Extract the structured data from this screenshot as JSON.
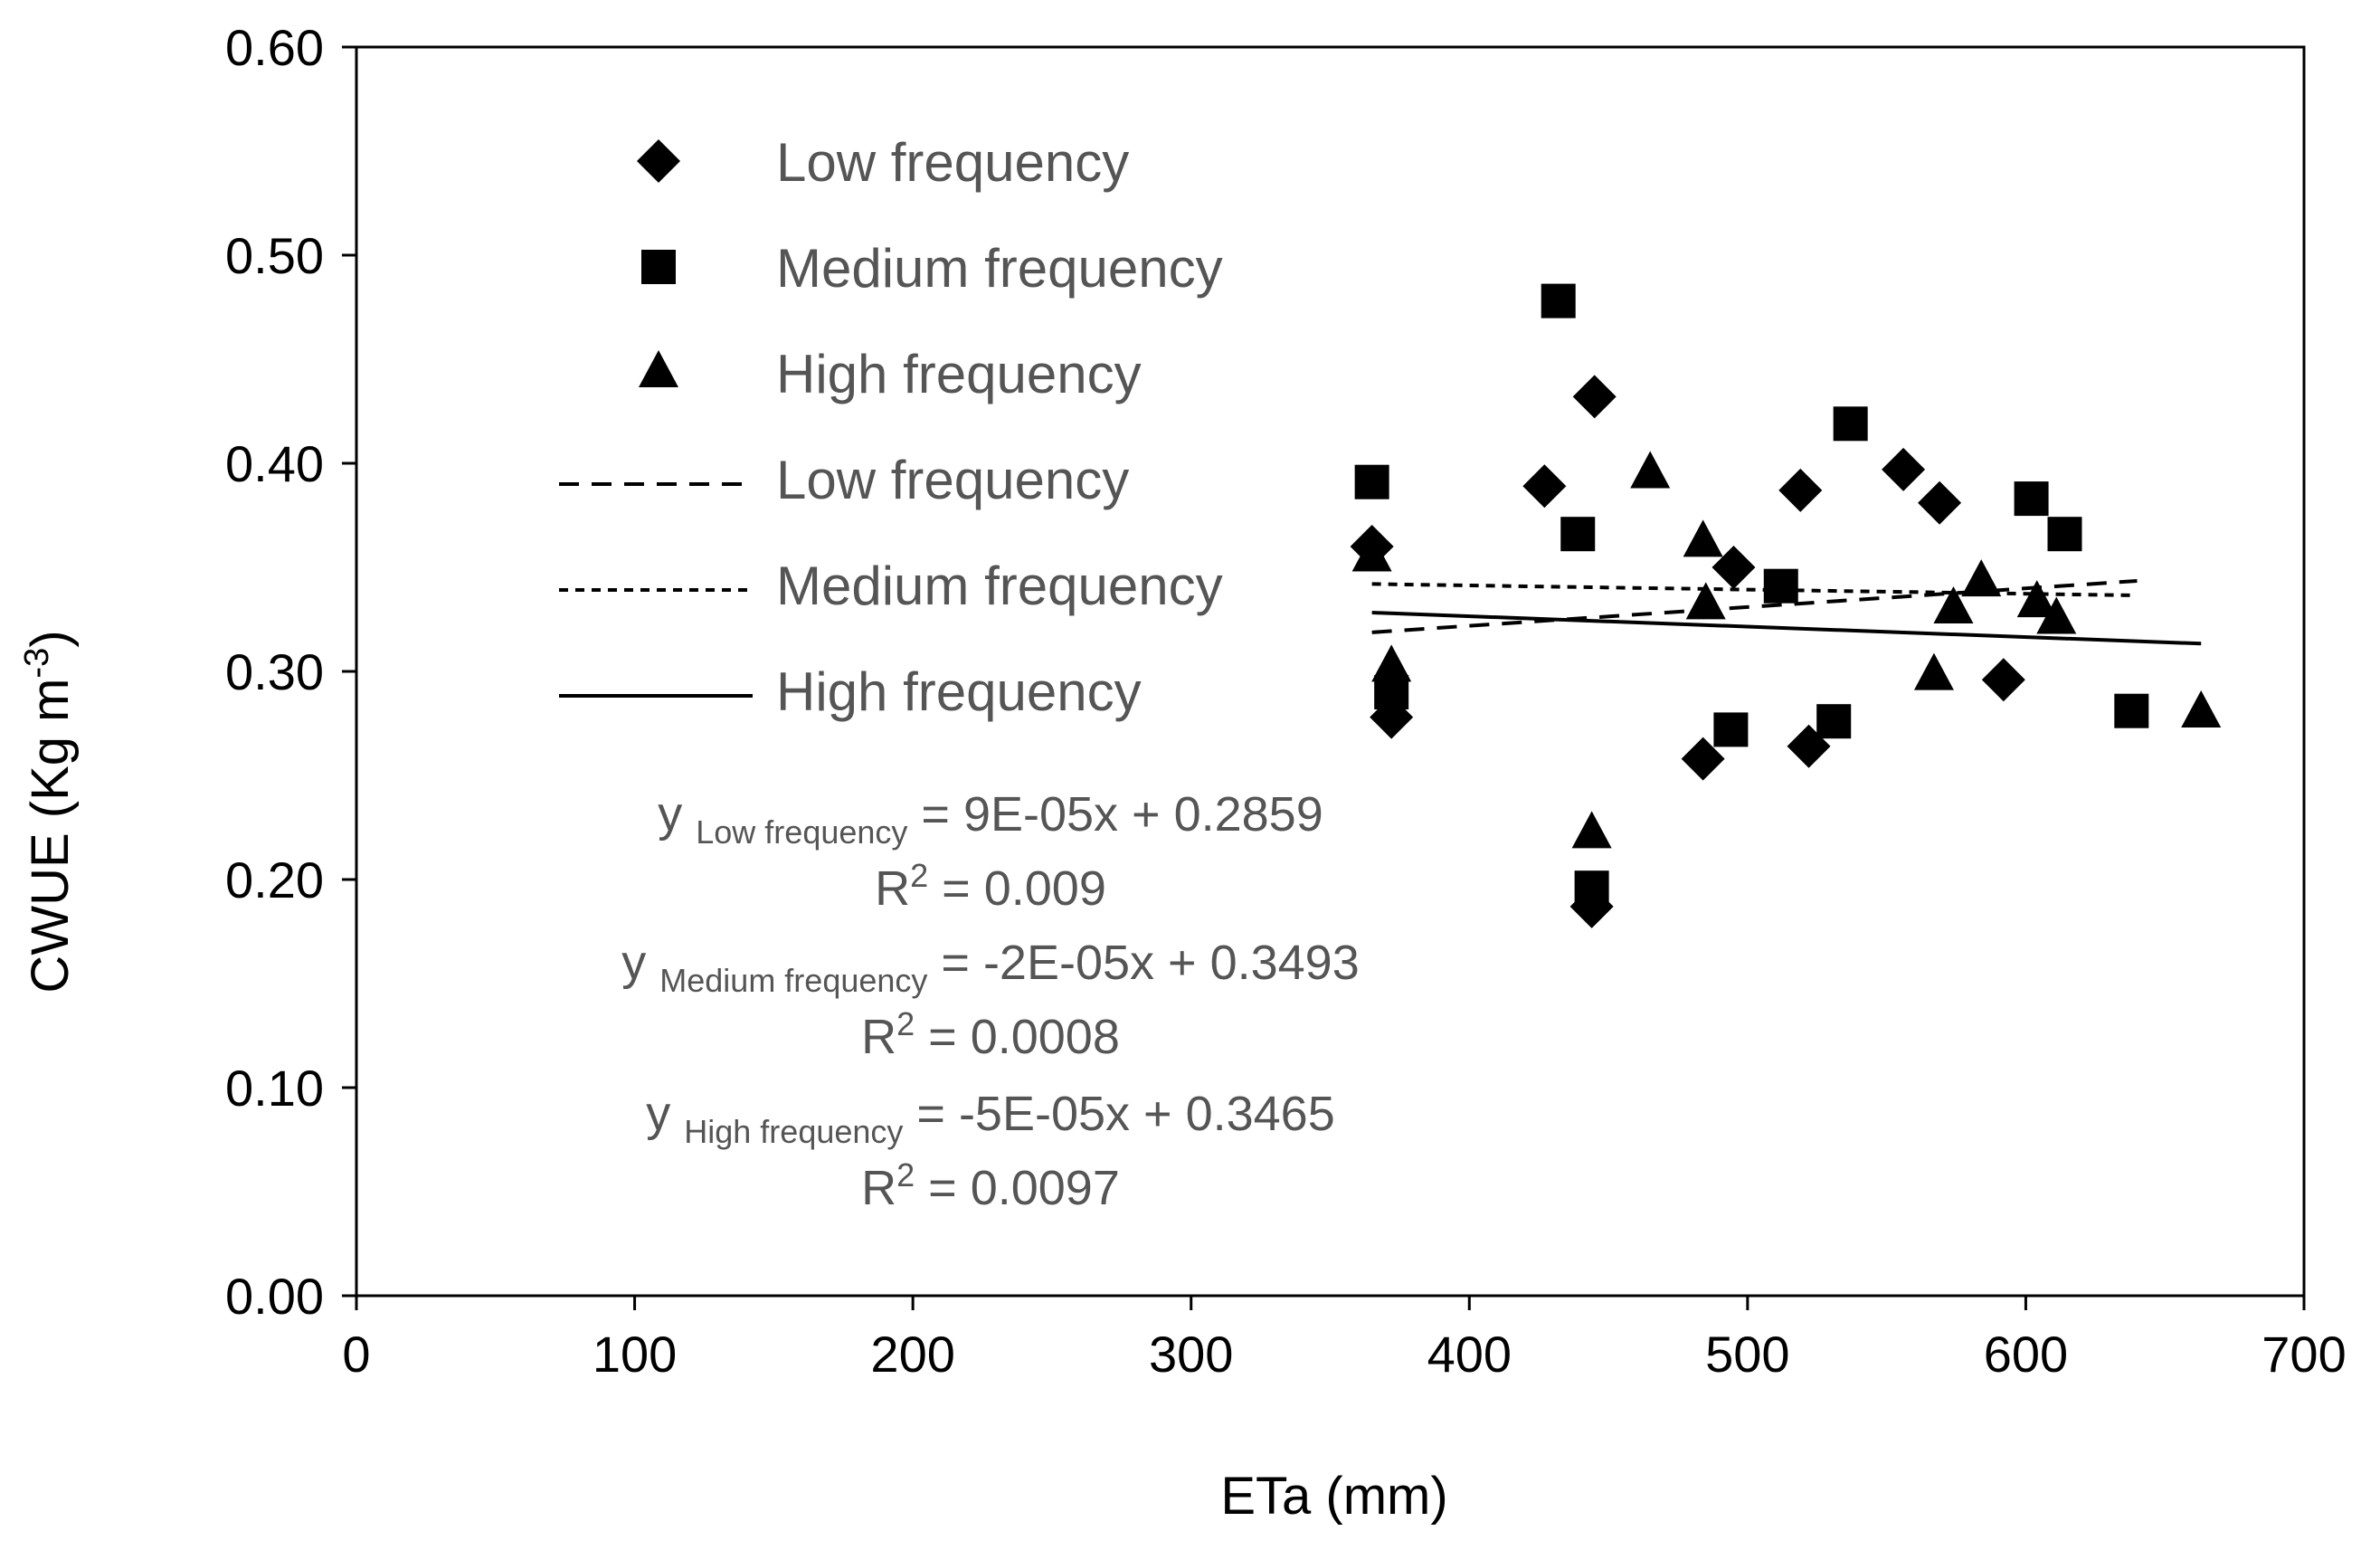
{
  "chart_data": {
    "type": "scatter",
    "title": "",
    "xlabel": "ETa (mm)",
    "ylabel_main": "CWUE (Kg m",
    "ylabel_sup": "-3",
    "ylabel_close": ")",
    "xlim": [
      0,
      700
    ],
    "ylim": [
      0,
      0.6
    ],
    "x_ticks": [
      0,
      100,
      200,
      300,
      400,
      500,
      600,
      700
    ],
    "x_tick_labels": [
      "0",
      "100",
      "200",
      "300",
      "400",
      "500",
      "600",
      "700"
    ],
    "y_ticks": [
      0,
      0.1,
      0.2,
      0.3,
      0.4,
      0.5,
      0.6
    ],
    "y_tick_labels": [
      "0.00",
      "0.10",
      "0.20",
      "0.30",
      "0.40",
      "0.50",
      "0.60"
    ],
    "grid": false,
    "series": [
      {
        "name": "Low frequency",
        "marker": "diamond",
        "points": [
          [
            365,
            0.36
          ],
          [
            372,
            0.278
          ],
          [
            427,
            0.389
          ],
          [
            444,
            0.187
          ],
          [
            445,
            0.432
          ],
          [
            484,
            0.258
          ],
          [
            495,
            0.35
          ],
          [
            519,
            0.387
          ],
          [
            522,
            0.264
          ],
          [
            556,
            0.397
          ],
          [
            569,
            0.381
          ],
          [
            592,
            0.296
          ]
        ]
      },
      {
        "name": "Medium frequency",
        "marker": "square",
        "points": [
          [
            365,
            0.391
          ],
          [
            372,
            0.29
          ],
          [
            432,
            0.478
          ],
          [
            439,
            0.366
          ],
          [
            444,
            0.196
          ],
          [
            494,
            0.272
          ],
          [
            512,
            0.341
          ],
          [
            531,
            0.276
          ],
          [
            537,
            0.419
          ],
          [
            602,
            0.383
          ],
          [
            614,
            0.366
          ],
          [
            638,
            0.281
          ]
        ]
      },
      {
        "name": "High frequency",
        "marker": "triangle",
        "points": [
          [
            365,
            0.355
          ],
          [
            372,
            0.302
          ],
          [
            444,
            0.222
          ],
          [
            465,
            0.395
          ],
          [
            484,
            0.362
          ],
          [
            485,
            0.332
          ],
          [
            567,
            0.298
          ],
          [
            574,
            0.33
          ],
          [
            584,
            0.343
          ],
          [
            604,
            0.333
          ],
          [
            611,
            0.325
          ],
          [
            663,
            0.28
          ]
        ]
      }
    ],
    "trendlines": [
      {
        "name": "Low frequency",
        "style": "dashed",
        "slope": 9e-05,
        "intercept": 0.2859,
        "x_range": [
          365,
          640
        ]
      },
      {
        "name": "Medium frequency",
        "style": "dotted",
        "slope": -2e-05,
        "intercept": 0.3493,
        "x_range": [
          365,
          640
        ]
      },
      {
        "name": "High frequency",
        "style": "solid",
        "slope": -5e-05,
        "intercept": 0.3465,
        "x_range": [
          365,
          663
        ]
      }
    ],
    "legend": {
      "placement": "top-left",
      "entries": [
        {
          "label": "Low frequency",
          "kind": "marker",
          "marker": "diamond"
        },
        {
          "label": "Medium frequency",
          "kind": "marker",
          "marker": "square"
        },
        {
          "label": "High frequency",
          "kind": "marker",
          "marker": "triangle"
        },
        {
          "label": "Low frequency",
          "kind": "line",
          "style": "dashed"
        },
        {
          "label": "Medium frequency",
          "kind": "line",
          "style": "dotted"
        },
        {
          "label": "High frequency",
          "kind": "line",
          "style": "solid"
        }
      ]
    },
    "annotations": [
      {
        "prefix": "y",
        "sub": "Low frequency",
        "eq": "= 9E-05x + 0.2859",
        "r2_base": "R",
        "r2_sup": "2",
        "r2_value": " = 0.009"
      },
      {
        "prefix": "y",
        "sub": "Medium frequency",
        "eq": "= -2E-05x + 0.3493",
        "r2_base": "R",
        "r2_sup": "2",
        "r2_value": " = 0.0008"
      },
      {
        "prefix": "y",
        "sub": "High frequency",
        "eq": "= -5E-05x + 0.3465",
        "r2_base": "R",
        "r2_sup": "2",
        "r2_value": " = 0.0097"
      }
    ]
  },
  "colors": {
    "axis": "#000000",
    "marker": "#000000",
    "legend_text": "#555555",
    "tick_text": "#000000"
  }
}
